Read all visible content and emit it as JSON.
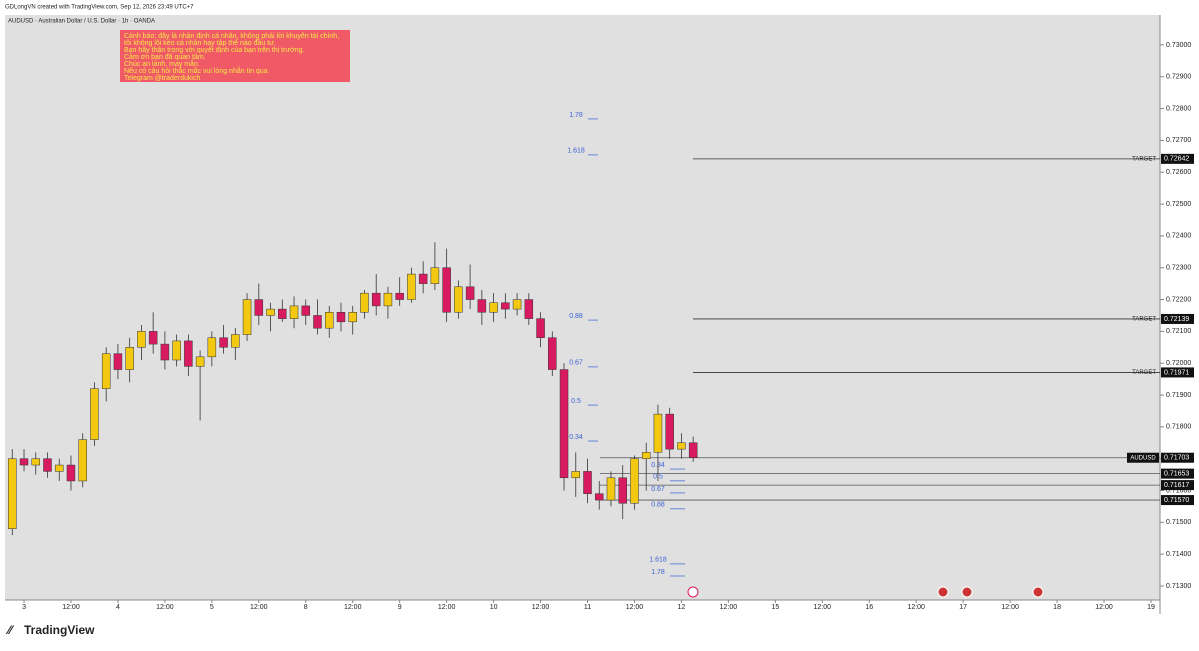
{
  "header": {
    "credit": "GDLongVN created with TradingView.com, Sep 12, 2026 23:49 UTC+7"
  },
  "footer": {
    "brand": "TradingView"
  },
  "chart_data": {
    "type": "candlestick",
    "title": "AUDUSD · Australian Dollar / U.S. Dollar · 1h · OANDA",
    "annotation": {
      "lines": [
        "Cảnh báo: đây là nhận định cá nhân, không phải lời khuyên tài chính,",
        "tôi không lôi kéo cá nhân hay tập thể nào đầu tư.",
        "Bạn hãy thận trọng với quyết định của bạn trên thị trường.",
        "Cảm ơn bạn đã quan tâm.",
        "Chúc an lành, may mắn.",
        "Nếu có câu hỏi thắc mắc vui lòng nhắn tin qua",
        "Telegram @traderdukich"
      ]
    },
    "up_color": "#f2c811",
    "down_color": "#d81b60",
    "background": "#e0e0e0",
    "xlim": [
      -4.86,
      290.3
    ],
    "xticks": [
      {
        "value": 0,
        "label": "3"
      },
      {
        "value": 12,
        "label": "12:00"
      },
      {
        "value": 24,
        "label": "4"
      },
      {
        "value": 36,
        "label": "12:00"
      },
      {
        "value": 48,
        "label": "5"
      },
      {
        "value": 60,
        "label": "12:00"
      },
      {
        "value": 72,
        "label": "8"
      },
      {
        "value": 84,
        "label": "12:00"
      },
      {
        "value": 96,
        "label": "9"
      },
      {
        "value": 108,
        "label": "12:00"
      },
      {
        "value": 120,
        "label": "10"
      },
      {
        "value": 132,
        "label": "12:00"
      },
      {
        "value": 144,
        "label": "11"
      },
      {
        "value": 156,
        "label": "12:00"
      },
      {
        "value": 168,
        "label": "12"
      },
      {
        "value": 180,
        "label": "12:00"
      },
      {
        "value": 192,
        "label": "15"
      },
      {
        "value": 204,
        "label": "12:00"
      },
      {
        "value": 216,
        "label": "16"
      },
      {
        "value": 228,
        "label": "12:00"
      },
      {
        "value": 240,
        "label": "17"
      },
      {
        "value": 252,
        "label": "12:00"
      },
      {
        "value": 264,
        "label": "18"
      },
      {
        "value": 276,
        "label": "12:00"
      },
      {
        "value": 288,
        "label": "19"
      }
    ],
    "ylim": [
      0.71256,
      0.73094
    ],
    "yticks": [
      {
        "value": 0.713,
        "label": "0.71300"
      },
      {
        "value": 0.714,
        "label": "0.71400"
      },
      {
        "value": 0.715,
        "label": "0.71500"
      },
      {
        "value": 0.716,
        "label": "0.71600"
      },
      {
        "value": 0.717,
        "label": "0.71700"
      },
      {
        "value": 0.718,
        "label": "0.71800"
      },
      {
        "value": 0.719,
        "label": "0.71900"
      },
      {
        "value": 0.72,
        "label": "0.72000"
      },
      {
        "value": 0.721,
        "label": "0.72100"
      },
      {
        "value": 0.722,
        "label": "0.72200"
      },
      {
        "value": 0.723,
        "label": "0.72300"
      },
      {
        "value": 0.724,
        "label": "0.72400"
      },
      {
        "value": 0.725,
        "label": "0.72500"
      },
      {
        "value": 0.726,
        "label": "0.72600"
      },
      {
        "value": 0.727,
        "label": "0.72700"
      },
      {
        "value": 0.728,
        "label": "0.72800"
      },
      {
        "value": 0.729,
        "label": "0.72900"
      },
      {
        "value": 0.73,
        "label": "0.73000"
      }
    ],
    "x": [
      -3,
      0,
      3,
      6,
      9,
      12,
      15,
      18,
      21,
      24,
      27,
      30,
      33,
      36,
      39,
      42,
      45,
      48,
      51,
      54,
      57,
      60,
      63,
      66,
      69,
      72,
      75,
      78,
      81,
      84,
      87,
      90,
      93,
      96,
      99,
      102,
      105,
      108,
      111,
      114,
      117,
      120,
      123,
      126,
      129,
      132,
      135,
      138,
      141,
      144,
      147,
      150,
      153,
      156,
      159,
      162,
      165,
      168,
      171
    ],
    "open": [
      0.7148,
      0.717,
      0.7168,
      0.717,
      0.7166,
      0.7168,
      0.7163,
      0.7176,
      0.7192,
      0.7203,
      0.7198,
      0.7205,
      0.721,
      0.7206,
      0.7201,
      0.7207,
      0.7199,
      0.7202,
      0.7208,
      0.7205,
      0.7209,
      0.722,
      0.7215,
      0.7217,
      0.7214,
      0.7218,
      0.7215,
      0.7211,
      0.7216,
      0.7213,
      0.7216,
      0.7222,
      0.7218,
      0.7222,
      0.722,
      0.7228,
      0.7225,
      0.723,
      0.7216,
      0.7224,
      0.722,
      0.7216,
      0.7219,
      0.7217,
      0.722,
      0.7214,
      0.7208,
      0.7198,
      0.7164,
      0.7166,
      0.7159,
      0.7157,
      0.7164,
      0.7156,
      0.717,
      0.7172,
      0.7184,
      0.7173,
      0.7175
    ],
    "high": [
      0.7173,
      0.7173,
      0.7172,
      0.7172,
      0.717,
      0.7171,
      0.7178,
      0.7194,
      0.7205,
      0.7206,
      0.7208,
      0.7212,
      0.7216,
      0.721,
      0.7209,
      0.7209,
      0.7204,
      0.721,
      0.7212,
      0.7211,
      0.7222,
      0.7225,
      0.7219,
      0.722,
      0.7221,
      0.722,
      0.722,
      0.7218,
      0.7219,
      0.7218,
      0.7223,
      0.7228,
      0.7224,
      0.7227,
      0.723,
      0.7232,
      0.7238,
      0.7236,
      0.7226,
      0.7231,
      0.7223,
      0.7222,
      0.7222,
      0.7222,
      0.7222,
      0.7216,
      0.721,
      0.72,
      0.7172,
      0.717,
      0.7163,
      0.7166,
      0.7168,
      0.7171,
      0.7175,
      0.7187,
      0.7186,
      0.7178,
      0.7177
    ],
    "low": [
      0.7146,
      0.7166,
      0.7165,
      0.7164,
      0.7163,
      0.716,
      0.7161,
      0.7174,
      0.7188,
      0.7195,
      0.7194,
      0.7201,
      0.7203,
      0.7198,
      0.7199,
      0.7196,
      0.7182,
      0.7199,
      0.7203,
      0.7201,
      0.7207,
      0.7212,
      0.721,
      0.7213,
      0.7211,
      0.7212,
      0.7209,
      0.7208,
      0.721,
      0.7209,
      0.7214,
      0.7215,
      0.7214,
      0.7218,
      0.7219,
      0.7222,
      0.7223,
      0.7213,
      0.7214,
      0.7217,
      0.7212,
      0.7213,
      0.7214,
      0.7215,
      0.7212,
      0.7205,
      0.7196,
      0.716,
      0.7158,
      0.7156,
      0.7154,
      0.7155,
      0.7151,
      0.7154,
      0.716,
      0.7163,
      0.717,
      0.717,
      0.7169
    ],
    "close": [
      0.717,
      0.7168,
      0.717,
      0.7166,
      0.7168,
      0.7163,
      0.7176,
      0.7192,
      0.7203,
      0.7198,
      0.7205,
      0.721,
      0.7206,
      0.7201,
      0.7207,
      0.7199,
      0.7202,
      0.7208,
      0.7205,
      0.7209,
      0.722,
      0.7215,
      0.7217,
      0.7214,
      0.7218,
      0.7215,
      0.7211,
      0.7216,
      0.7213,
      0.7216,
      0.7222,
      0.7218,
      0.7222,
      0.722,
      0.7228,
      0.7225,
      0.723,
      0.7216,
      0.7224,
      0.722,
      0.7216,
      0.7219,
      0.7217,
      0.722,
      0.7214,
      0.7208,
      0.7198,
      0.7164,
      0.7166,
      0.7159,
      0.7157,
      0.7164,
      0.7156,
      0.717,
      0.7172,
      0.7184,
      0.7173,
      0.7175,
      0.71703
    ],
    "price_lines": {
      "names": [
        "TARGET",
        "TARGET",
        "TARGET",
        "AUDUSD",
        null,
        null,
        null
      ],
      "values": [
        0.72642,
        0.72139,
        0.71971,
        0.71703,
        0.71653,
        0.71617,
        0.7157
      ],
      "value_labels": [
        "0.72642",
        "0.72139",
        "0.71971",
        "0.71703",
        "0.71653",
        "0.71617",
        "0.71570"
      ]
    },
    "fib_left": {
      "labels": [
        1.78,
        1.618,
        0.88,
        0.67,
        0.5,
        0.34
      ],
      "prices": [
        0.7278,
        0.72667,
        0.72148,
        0.72001,
        0.71881,
        0.71768
      ]
    },
    "fib_right": {
      "labels": [
        0.34,
        0.5,
        0.67,
        0.88,
        1.618,
        1.78
      ],
      "prices": [
        0.7168,
        0.71643,
        0.71605,
        0.71555,
        0.71382,
        0.71344
      ]
    }
  }
}
